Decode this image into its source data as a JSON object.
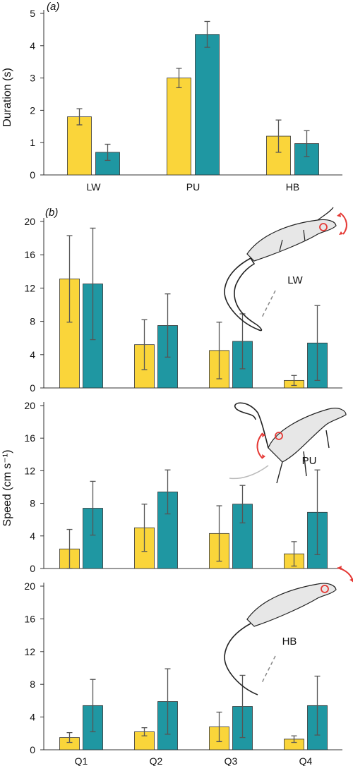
{
  "colors": {
    "yellow": "#FAD53A",
    "teal": "#1F97A2",
    "edge": "#333333",
    "err": "#555555",
    "accent": "#E53935"
  },
  "figure": {
    "label_a": "(a)",
    "label_b": "(b)",
    "shared_ylabel_b": "Speed (cm s⁻¹)"
  },
  "chart_data": [
    {
      "type": "bar",
      "id": "a",
      "panel_label": "(a)",
      "ylabel": "Duration (s)",
      "ylim": [
        0,
        5
      ],
      "yticks": [
        0,
        1,
        2,
        3,
        4,
        5
      ],
      "categories": [
        "LW",
        "PU",
        "HB"
      ],
      "series": [
        {
          "color": "yellow",
          "values": [
            1.8,
            3.0,
            1.2
          ],
          "errors": [
            0.25,
            0.3,
            0.5
          ]
        },
        {
          "color": "teal",
          "values": [
            0.7,
            4.35,
            0.97
          ],
          "errors": [
            0.25,
            0.4,
            0.4
          ]
        }
      ]
    },
    {
      "type": "bar",
      "id": "b1",
      "panel_label": "(b)",
      "inset_label": "LW",
      "ylim": [
        0,
        20
      ],
      "yticks": [
        0,
        4,
        8,
        12,
        16,
        20
      ],
      "categories": [
        "Q1",
        "Q2",
        "Q3",
        "Q4"
      ],
      "series": [
        {
          "color": "yellow",
          "values": [
            13.1,
            5.2,
            4.5,
            0.9
          ],
          "errors": [
            5.2,
            3.0,
            3.4,
            0.6
          ]
        },
        {
          "color": "teal",
          "values": [
            12.5,
            7.5,
            5.6,
            5.4
          ],
          "errors": [
            6.7,
            3.8,
            3.3,
            4.5
          ]
        }
      ]
    },
    {
      "type": "bar",
      "id": "b2",
      "inset_label": "PU",
      "ylim": [
        0,
        20
      ],
      "yticks": [
        0,
        4,
        8,
        12,
        16,
        20
      ],
      "categories": [
        "Q1",
        "Q2",
        "Q3",
        "Q4"
      ],
      "series": [
        {
          "color": "yellow",
          "values": [
            2.4,
            5.0,
            4.3,
            1.8
          ],
          "errors": [
            2.4,
            2.9,
            3.4,
            1.5
          ]
        },
        {
          "color": "teal",
          "values": [
            7.4,
            9.4,
            7.9,
            6.9
          ],
          "errors": [
            3.3,
            2.7,
            2.3,
            5.2
          ]
        }
      ]
    },
    {
      "type": "bar",
      "id": "b3",
      "inset_label": "HB",
      "ylim": [
        0,
        20
      ],
      "yticks": [
        0,
        4,
        8,
        12,
        16,
        20
      ],
      "categories": [
        "Q1",
        "Q2",
        "Q3",
        "Q4"
      ],
      "series": [
        {
          "color": "yellow",
          "values": [
            1.5,
            2.2,
            2.8,
            1.3
          ],
          "errors": [
            0.6,
            0.5,
            1.8,
            0.4
          ]
        },
        {
          "color": "teal",
          "values": [
            5.4,
            5.9,
            5.3,
            5.4
          ],
          "errors": [
            3.2,
            4.0,
            3.8,
            3.6
          ]
        }
      ]
    }
  ]
}
